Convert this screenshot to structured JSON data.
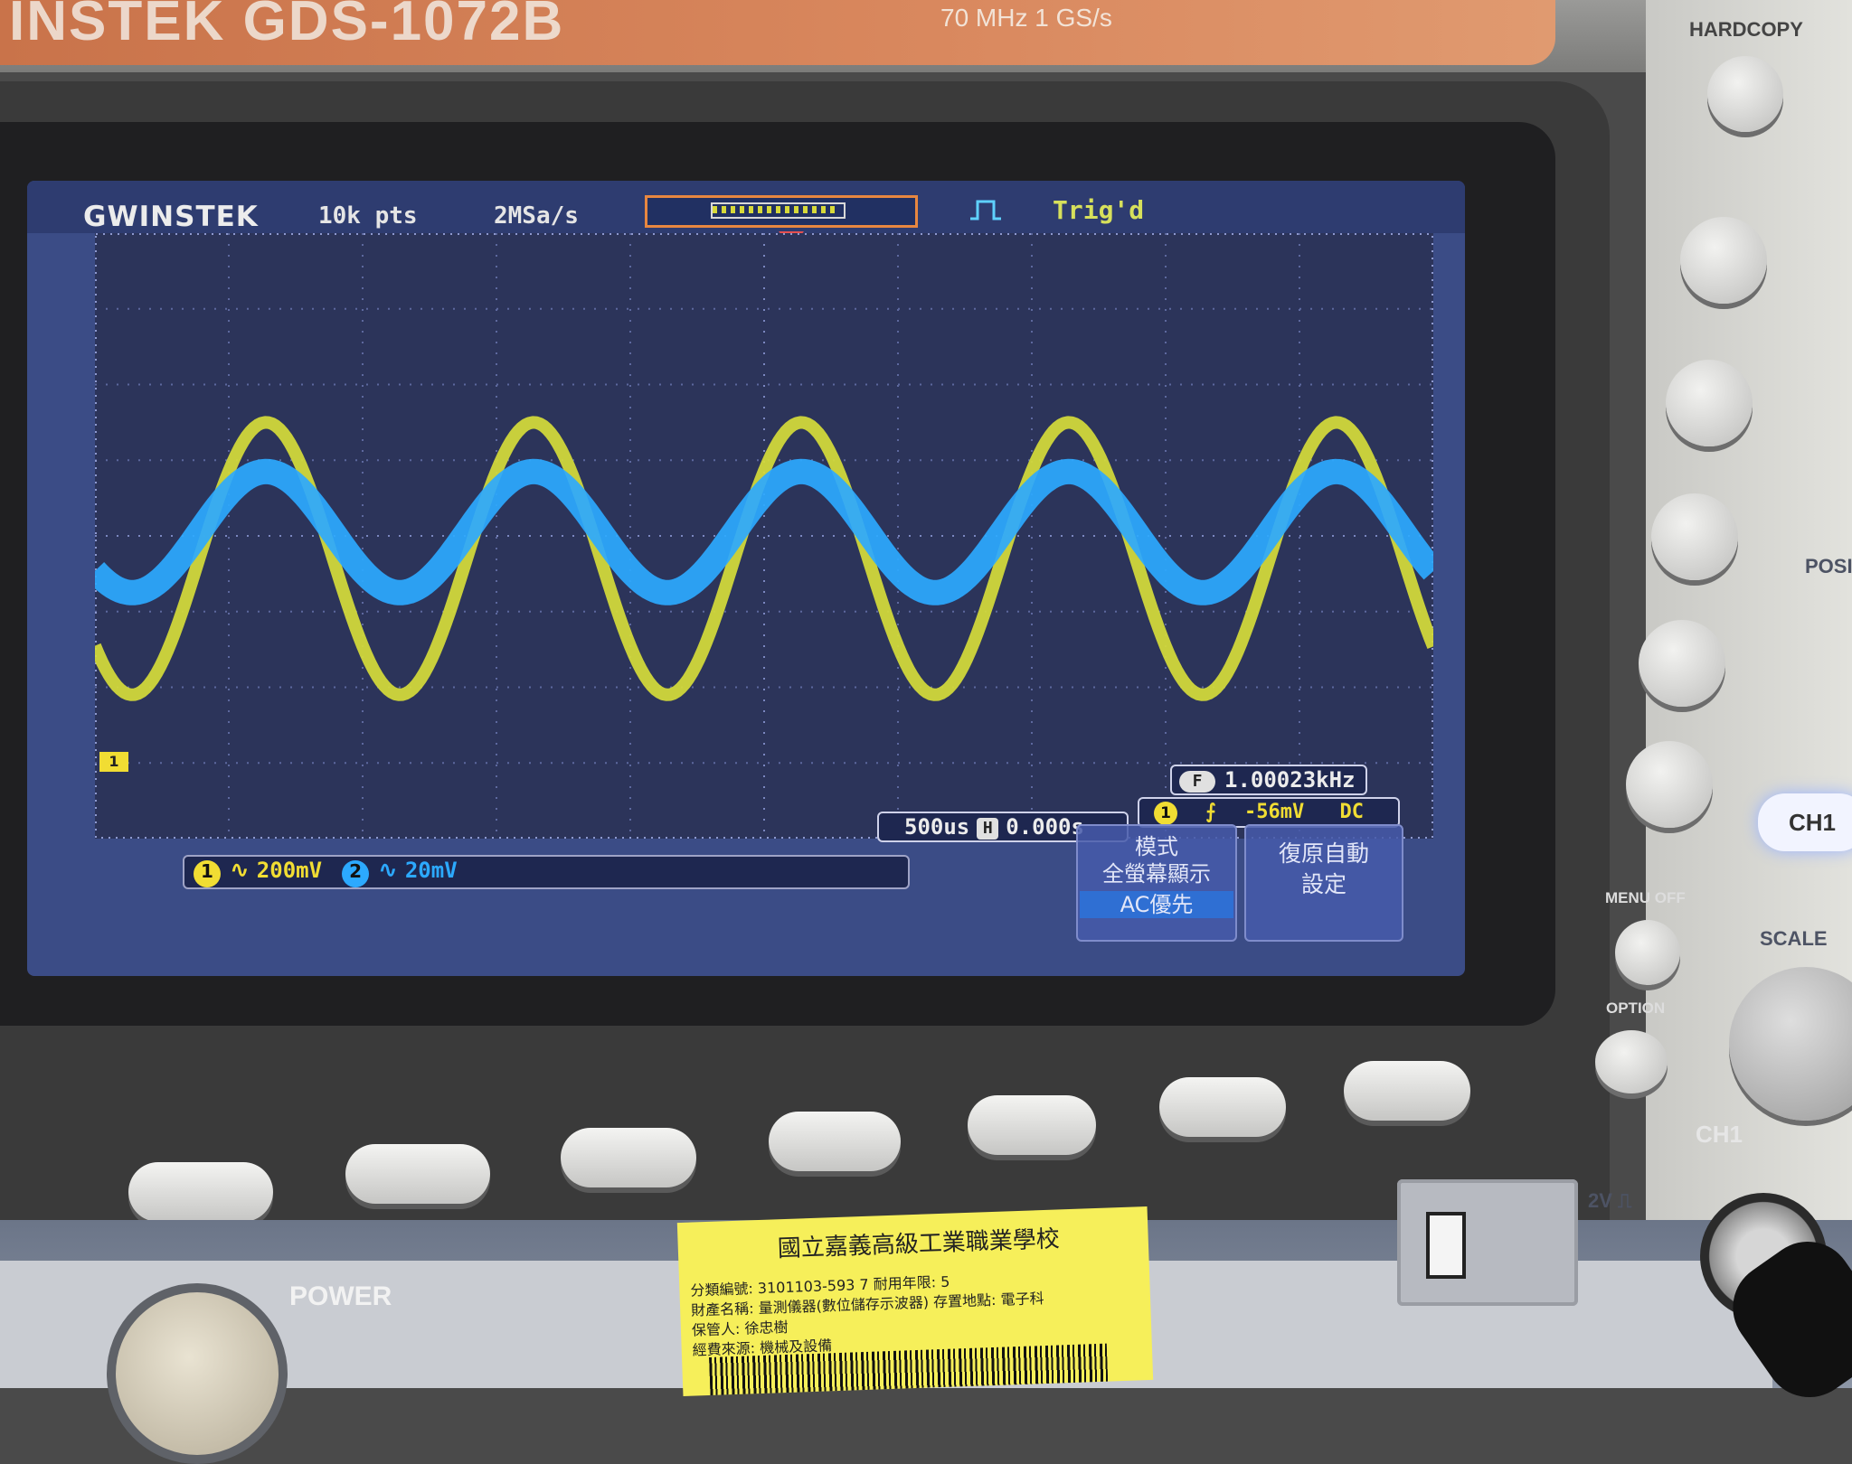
{
  "device": {
    "brand_model": "INSTEK GDS-1072B",
    "spec_line": "70 MHz  1 GS/s",
    "hardcopy_label": "HARDCOPY",
    "menu_off_label": "MENU OFF",
    "option_label": "OPTION",
    "position_label": "POSI",
    "scale_label": "SCALE",
    "ch1_button_label": "CH1",
    "ch1_section_label": "CH1",
    "power_label": "POWER",
    "probe_comp_label": "2V ⎍"
  },
  "screen": {
    "logo": "GWINSTEK",
    "record_length": "10k pts",
    "sample_rate": "2MSa/s",
    "trigger_status": "Trig'd",
    "ch1_ground_marker": "1",
    "channels": [
      {
        "number": "1",
        "coupling": "∿",
        "scale": "200mV",
        "color": "#f1dd33"
      },
      {
        "number": "2",
        "coupling": "∿",
        "scale": "20mV",
        "color": "#2ca9ff"
      }
    ],
    "timebase": {
      "scale": "500us",
      "h_badge": "H",
      "position": "0.000s"
    },
    "frequency": {
      "badge": "F",
      "value": "1.00023kHz"
    },
    "trigger": {
      "source": "1",
      "slope": "⨍",
      "level": "-56mV",
      "coupling": "DC"
    },
    "menu": {
      "mode_title": "模式",
      "mode_option": "全螢幕顯示",
      "mode_selected": "AC優先",
      "reset_line1": "復原自動",
      "reset_line2": "設定"
    }
  },
  "asset_tag": {
    "title": "國立嘉義高級工業職業學校",
    "line1": "分類編號: 3101103-593      7    耐用年限:  5",
    "line2": "財產名稱: 量測儀器(數位儲存示波器)    存置地點: 電子科",
    "line3": "保管人:  徐忠樹",
    "line4": "經費來源: 機械及設備"
  },
  "chart_data": {
    "type": "line",
    "title": "",
    "xlabel": "",
    "ylabel": "",
    "x_divisions": 10,
    "y_divisions": 8,
    "time_per_div_us": 500,
    "x_range_us": [
      -2500,
      2500
    ],
    "series": [
      {
        "name": "",
        "color": "#d6dc3a",
        "frequency_hz": 1000.23,
        "amplitude_div": 1.8,
        "offset_div": -0.3,
        "phase_deg": 40
      },
      {
        "name": "",
        "color": "#2ca9ff",
        "frequency_hz": 1000.23,
        "amplitude_div": 0.8,
        "offset_div": 0.05,
        "phase_deg": 40
      }
    ]
  }
}
